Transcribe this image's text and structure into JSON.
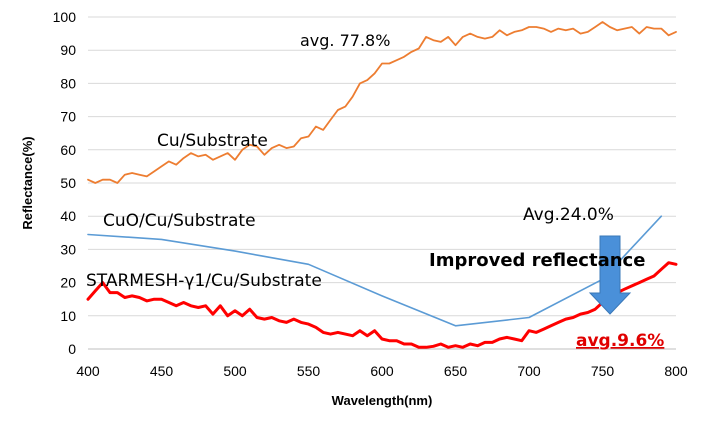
{
  "chart_data": {
    "type": "line",
    "xlabel": "Wavelength(nm)",
    "ylabel": "Reflectance(%)",
    "xlim": [
      400,
      800
    ],
    "ylim": [
      0,
      100
    ],
    "xticks": [
      400,
      450,
      500,
      550,
      600,
      650,
      700,
      750,
      800
    ],
    "yticks": [
      0,
      10,
      20,
      30,
      40,
      50,
      60,
      70,
      80,
      90,
      100
    ],
    "grid": "horizontal",
    "series": [
      {
        "name": "Cu/Substrate",
        "color": "#ed7d31",
        "x": [
          400,
          405,
          410,
          415,
          420,
          425,
          430,
          435,
          440,
          445,
          450,
          455,
          460,
          465,
          470,
          475,
          480,
          485,
          490,
          495,
          500,
          505,
          510,
          515,
          520,
          525,
          530,
          535,
          540,
          545,
          550,
          555,
          560,
          565,
          570,
          575,
          580,
          585,
          590,
          595,
          600,
          605,
          610,
          615,
          620,
          625,
          630,
          635,
          640,
          645,
          650,
          655,
          660,
          665,
          670,
          675,
          680,
          685,
          690,
          695,
          700,
          705,
          710,
          715,
          720,
          725,
          730,
          735,
          740,
          745,
          750,
          755,
          760,
          765,
          770,
          775,
          780,
          785,
          790,
          795,
          800
        ],
        "y": [
          51,
          50,
          51,
          51,
          50,
          52.5,
          53,
          52.5,
          52,
          53.5,
          55,
          56.5,
          55.5,
          57.5,
          59,
          58,
          58.5,
          57,
          58,
          59,
          57,
          60,
          61.5,
          61,
          58.5,
          60.5,
          61.5,
          60.5,
          61,
          63.5,
          64,
          67,
          66,
          69,
          72,
          73,
          76,
          80,
          81,
          83,
          86,
          86,
          87,
          88,
          89.5,
          90.5,
          94,
          93,
          92.5,
          94,
          91.5,
          94,
          95,
          94,
          93.5,
          94,
          96,
          94.5,
          95.5,
          96,
          97,
          97,
          96.5,
          95.5,
          96.5,
          96,
          96.5,
          95,
          95.5,
          97,
          98.5,
          97,
          96,
          96.5,
          97,
          95,
          97,
          96.5,
          96.5,
          94.5,
          95.5
        ]
      },
      {
        "name": "CuO/Cu/Substrate",
        "color": "#5b9bd5",
        "x": [
          400,
          450,
          500,
          550,
          600,
          650,
          700,
          750,
          790
        ],
        "y": [
          34.5,
          33,
          29.5,
          25.5,
          16,
          7,
          9.5,
          21,
          40
        ]
      },
      {
        "name": "STARMESH-γ1/Cu/Substrate",
        "color": "#ff0000",
        "x": [
          400,
          405,
          410,
          415,
          420,
          425,
          430,
          435,
          440,
          445,
          450,
          455,
          460,
          465,
          470,
          475,
          480,
          485,
          490,
          495,
          500,
          505,
          510,
          515,
          520,
          525,
          530,
          535,
          540,
          545,
          550,
          555,
          560,
          565,
          570,
          575,
          580,
          585,
          590,
          595,
          600,
          605,
          610,
          615,
          620,
          625,
          630,
          635,
          640,
          645,
          650,
          655,
          660,
          665,
          670,
          675,
          680,
          685,
          690,
          695,
          700,
          705,
          710,
          715,
          720,
          725,
          730,
          735,
          740,
          745,
          750,
          755,
          760,
          765,
          770,
          775,
          780,
          785,
          790,
          795,
          800
        ],
        "y": [
          15,
          17.5,
          20,
          17,
          17,
          15.5,
          16,
          15.5,
          14.5,
          15,
          15,
          14,
          13,
          14,
          13,
          12.5,
          13,
          10.5,
          13,
          10,
          11.5,
          10,
          12,
          9.5,
          9,
          9.5,
          8.5,
          8,
          9,
          8,
          7.5,
          6.5,
          5,
          4.5,
          5,
          4.5,
          4,
          5.5,
          4,
          5.5,
          3,
          2.5,
          2.5,
          1.5,
          1.5,
          0.5,
          0.5,
          0.8,
          1.5,
          0.5,
          1,
          0.5,
          1.5,
          1,
          2,
          2,
          3,
          3.5,
          3,
          2.5,
          5.5,
          5,
          6,
          7,
          8,
          9,
          9.5,
          10.5,
          11,
          12,
          14,
          16,
          17,
          18,
          19,
          20,
          21,
          22,
          24,
          26,
          25.5
        ]
      }
    ],
    "annotations": [
      {
        "text": "avg. 77.8%",
        "style": "normal"
      },
      {
        "text": "Cu/Substrate",
        "style": "normal"
      },
      {
        "text": "CuO/Cu/Substrate",
        "style": "normal"
      },
      {
        "text": "Avg.24.0%",
        "style": "normal"
      },
      {
        "text": "STARMESH-γ1/Cu/Substrate",
        "style": "normal"
      },
      {
        "text": "Improved reflectance",
        "style": "bold"
      },
      {
        "text": "avg.9.6%",
        "style": "bold-red-underline"
      }
    ]
  }
}
